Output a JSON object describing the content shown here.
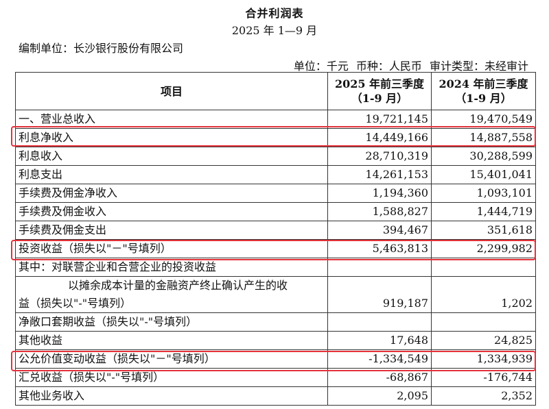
{
  "header": {
    "title": "合并利润表",
    "period": "2025 年 1—9 月",
    "reporting_unit": "编制单位：长沙银行股份有限公司",
    "meta": "单位：千元   币种：人民币   审计类型：未经审计"
  },
  "table": {
    "col_item": "项目",
    "col_2025_line1": "2025 年前三季度",
    "col_2025_line2": "（1-9 月）",
    "col_2024_line1": "2024 年前三季度",
    "col_2024_line2": "（1-9 月）",
    "rows": [
      {
        "label": "一、营业总收入",
        "v2025": "19,721,145",
        "v2024": "19,470,549"
      },
      {
        "label": "利息净收入",
        "v2025": "14,449,166",
        "v2024": "14,887,558"
      },
      {
        "label": "利息收入",
        "v2025": "28,710,319",
        "v2024": "30,288,599"
      },
      {
        "label": "利息支出",
        "v2025": "14,261,153",
        "v2024": "15,401,041"
      },
      {
        "label": "手续费及佣金净收入",
        "v2025": "1,194,360",
        "v2024": "1,093,101"
      },
      {
        "label": "手续费及佣金收入",
        "v2025": "1,588,827",
        "v2024": "1,444,719"
      },
      {
        "label": "手续费及佣金支出",
        "v2025": "394,467",
        "v2024": "351,618"
      },
      {
        "label": "投资收益（损失以\"－\"号填列）",
        "v2025": "5,463,813",
        "v2024": "2,299,982"
      },
      {
        "label": "其中：对联营企业和合营企业的投资收益",
        "v2025": "",
        "v2024": ""
      },
      {
        "label_line1": "以摊余成本计量的金融资产终止确认产生的收",
        "label_line2": "益（损失以\"-\"号填列）",
        "v2025": "919,187",
        "v2024": "1,202"
      },
      {
        "label": "净敞口套期收益（损失以\"-\"号填列）",
        "v2025": "",
        "v2024": ""
      },
      {
        "label": "其他收益",
        "v2025": "17,648",
        "v2024": "24,825"
      },
      {
        "label": "公允价值变动收益（损失以\"－\"号填列）",
        "v2025": "-1,334,549",
        "v2024": "1,334,939"
      },
      {
        "label": "汇兑收益（损失以\"-\"号填列）",
        "v2025": "-68,867",
        "v2024": "-176,744"
      },
      {
        "label": "其他业务收入",
        "v2025": "2,095",
        "v2024": "2,352"
      }
    ]
  },
  "highlight_color": "#e5313a"
}
